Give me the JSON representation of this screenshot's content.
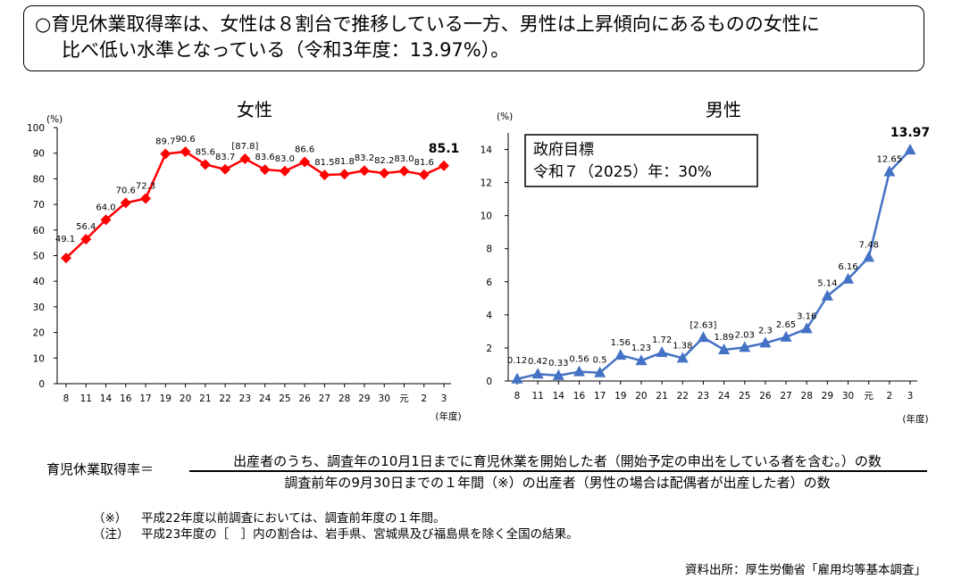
{
  "headline": {
    "line1": "○育児休業取得率は、女性は８割台で推移している一方、男性は上昇傾向にあるものの女性に",
    "line2": "比べ低い水準となっている（令和3年度：13.97%）。"
  },
  "chart_data": [
    {
      "type": "line",
      "title": "女性",
      "ylabel": "(%)",
      "xlabel": "(年度)",
      "ylim": [
        0,
        100
      ],
      "yticks": [
        0,
        10,
        20,
        30,
        40,
        50,
        60,
        70,
        80,
        90,
        100
      ],
      "categories": [
        "8",
        "11",
        "14",
        "16",
        "17",
        "19",
        "20",
        "21",
        "22",
        "23",
        "24",
        "25",
        "26",
        "27",
        "28",
        "29",
        "30",
        "元",
        "2",
        "3"
      ],
      "values": [
        49.1,
        56.4,
        64.0,
        70.6,
        72.3,
        89.7,
        90.6,
        85.6,
        83.7,
        87.8,
        83.6,
        83.0,
        86.6,
        81.5,
        81.8,
        83.2,
        82.2,
        83.0,
        81.6,
        85.1
      ],
      "labels": [
        "49.1",
        "56.4",
        "64.0",
        "70.6",
        "72.3",
        "89.7",
        "90.6",
        "85.6",
        "83.7",
        "[87.8]",
        "83.6",
        "83.0",
        "86.6",
        "81.5",
        "81.8",
        "83.2",
        "82.2",
        "83.0",
        "81.6",
        "85.1"
      ],
      "color": "#ff0000",
      "marker": "diamond"
    },
    {
      "type": "line",
      "title": "男性",
      "ylabel": "(%)",
      "xlabel": "(年度)",
      "ylim": [
        0,
        15
      ],
      "yticks": [
        0,
        2,
        4,
        6,
        8,
        10,
        12,
        14
      ],
      "categories": [
        "8",
        "11",
        "14",
        "16",
        "17",
        "19",
        "20",
        "21",
        "22",
        "23",
        "24",
        "25",
        "26",
        "27",
        "28",
        "29",
        "30",
        "元",
        "2",
        "3"
      ],
      "values": [
        0.12,
        0.42,
        0.33,
        0.56,
        0.5,
        1.56,
        1.23,
        1.72,
        1.38,
        2.63,
        1.89,
        2.03,
        2.3,
        2.65,
        3.16,
        5.14,
        6.16,
        7.48,
        12.65,
        13.97
      ],
      "labels": [
        "0.12",
        "0.42",
        "0.33",
        "0.56",
        "0.5",
        "1.56",
        "1.23",
        "1.72",
        "1.38",
        "[2.63]",
        "1.89",
        "2.03",
        "2.3",
        "2.65",
        "3.16",
        "5.14",
        "6.16",
        "7.48",
        "12.65",
        "13.97"
      ],
      "color": "#4472c4",
      "marker": "triangle",
      "annotation": {
        "line1": "政府目標",
        "line2": "令和７（2025）年：30%"
      }
    }
  ],
  "formula": {
    "lhs": "育児休業取得率＝",
    "numerator": "出産者のうち、調査年の10月1日までに育児休業を開始した者（開始予定の申出をしている者を含む。）の数",
    "denominator": "調査前年の9月30日までの１年間（※）の出産者（男性の場合は配偶者が出産した者）の数"
  },
  "notes": [
    {
      "mark": "（※）",
      "text": "平成22年度以前調査においては、調査前年度の１年間。"
    },
    {
      "mark": "（注）",
      "text": "平成23年度の［　］内の割合は、岩手県、宮城県及び福島県を除く全国の結果。"
    }
  ],
  "source": "資料出所：厚生労働省「雇用均等基本調査」"
}
